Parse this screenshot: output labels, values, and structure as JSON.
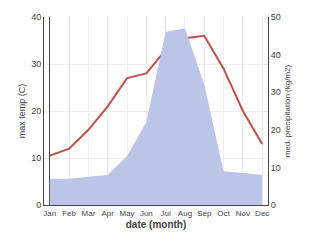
{
  "chart_data": {
    "type": "line",
    "categories": [
      "Jan",
      "Feb",
      "Mar",
      "Apr",
      "May",
      "Jun",
      "Jul",
      "Aug",
      "Sep",
      "Oct",
      "Nov",
      "Dec"
    ],
    "xlabel": "date (month)",
    "ylabel": "max temp (C)",
    "y2label": "med. precipitation (kg/m2)",
    "series": [
      {
        "type": "area",
        "axis": "y2",
        "color": "#bcc5e8",
        "values": [
          7.0,
          7.0,
          7.5,
          8.0,
          13.0,
          22.0,
          46.0,
          47.0,
          32.0,
          9.0,
          8.5,
          8.0
        ]
      },
      {
        "type": "line",
        "color": "#c0514c",
        "values": [
          10.5,
          12.0,
          16.0,
          21.0,
          27.0,
          28.0,
          33.0,
          35.5,
          36.0,
          29.0,
          20.0,
          13.0
        ]
      }
    ],
    "ylim": [
      0,
      40
    ],
    "yticks": [
      0,
      10,
      20,
      30,
      40
    ],
    "y2lim": [
      0,
      50
    ],
    "y2ticks": [
      0,
      10,
      20,
      30,
      40,
      50
    ],
    "grid": true
  }
}
